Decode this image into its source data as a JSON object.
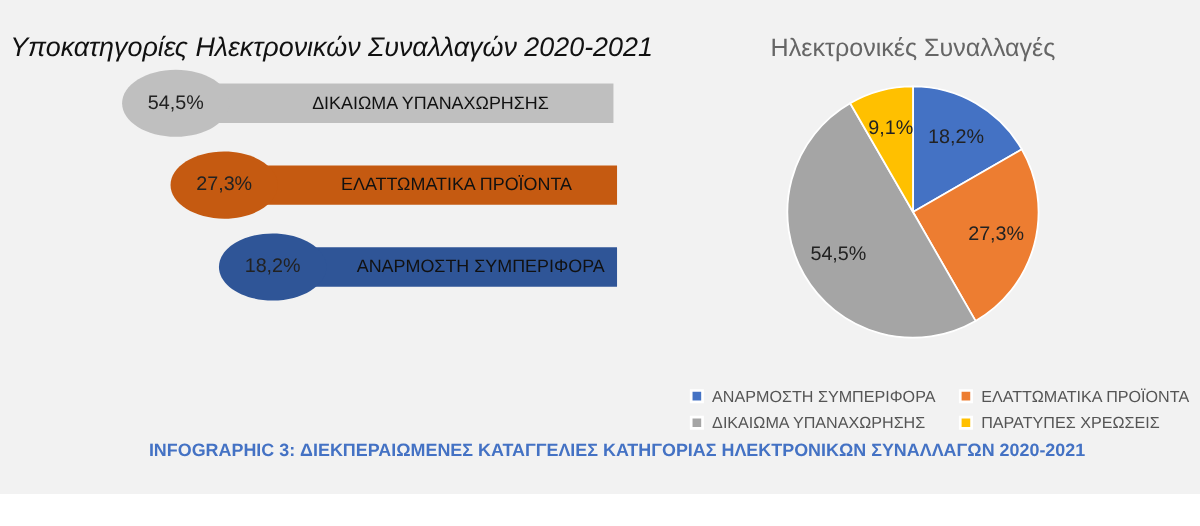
{
  "chart_data": [
    {
      "type": "other",
      "title": "Υποκατηγορίες Ηλεκτρονικών Συναλλαγών 2020-2021",
      "categories": [
        "ΔΙΚΑΙΩΜΑ ΥΠΑΝΑΧΩΡΗΣΗΣ",
        "ΕΛΑΤΤΩΜΑΤΙΚΑ ΠΡΟΪΟΝΤΑ",
        "ΑΝΑΡΜΟΣΤΗ ΣΥΜΠΕΡΙΦΟΡΑ"
      ],
      "values": [
        54.5,
        27.3,
        18.2
      ],
      "value_labels": [
        "54,5%",
        "27,3%",
        "18,2%"
      ],
      "colors": [
        "#bfbfbf",
        "#c55a11",
        "#2f5597"
      ],
      "annotations": [
        "INFOGRAPHIC 3: ΔΙΕΚΠΕΡΑΙΩΜΕΝΕΣ ΚΑΤΑΓΓΕΛΙΕΣ ΚΑΤΗΓΟΡΙΑΣ ΗΛΕΚΤΡΟΝΙΚΩΝ ΣΥΝΑΛΛΑΓΩΝ 2020-2021"
      ]
    },
    {
      "type": "pie",
      "title": "Ηλεκτρονικές Συναλλαγές",
      "categories": [
        "ΑΝΑΡΜΟΣΤΗ ΣΥΜΠΕΡΙΦΟΡΑ",
        "ΕΛΑΤΤΩΜΑΤΙΚΑ ΠΡΟΪΟΝΤΑ",
        "ΔΙΚΑΙΩΜΑ ΥΠΑΝΑΧΩΡΗΣΗΣ",
        "ΠΑΡΑΤΥΠΕΣ ΧΡΕΩΣΕΙΣ"
      ],
      "values": [
        18.2,
        27.3,
        54.5,
        9.1
      ],
      "value_labels": [
        "18,2%",
        "27,3%",
        "54,5%",
        "9,1%"
      ],
      "colors": [
        "#4472c4",
        "#ed7d31",
        "#a5a5a5",
        "#ffc000"
      ],
      "legend": "bottom"
    }
  ]
}
